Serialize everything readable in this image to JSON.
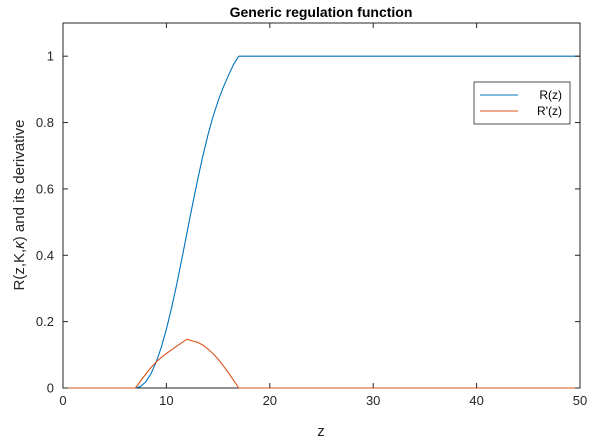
{
  "chart_data": {
    "type": "line",
    "title": "Generic regulation function",
    "xlabel": "z",
    "ylabel": "R(z,K,κ) and its derivative",
    "xlim": [
      0,
      50
    ],
    "ylim": [
      0,
      1.1
    ],
    "xticks": [
      0,
      10,
      20,
      30,
      40,
      50
    ],
    "xtick_labels": [
      "0",
      "10",
      "20",
      "30",
      "40",
      "50"
    ],
    "yticks": [
      0,
      0.2,
      0.4,
      0.6,
      0.8,
      1
    ],
    "ytick_labels": [
      "0",
      "0.2",
      "0.4",
      "0.6",
      "0.8",
      "1"
    ],
    "grid": false,
    "legend_position": "top-right",
    "series": [
      {
        "name": "R(z)",
        "color": "#0072BD",
        "x": [
          0,
          7,
          7.5,
          8,
          8.5,
          9,
          9.5,
          10,
          10.5,
          11,
          11.5,
          12,
          12.5,
          13,
          13.5,
          14,
          14.5,
          15,
          15.5,
          16,
          16.5,
          17,
          20,
          30,
          40,
          50
        ],
        "y": [
          0,
          0,
          0.0044,
          0.0184,
          0.0425,
          0.0771,
          0.1221,
          0.1772,
          0.2413,
          0.3128,
          0.3897,
          0.4695,
          0.5485,
          0.6246,
          0.6958,
          0.7604,
          0.8171,
          0.8652,
          0.9061,
          0.942,
          0.9755,
          1.0,
          1.0,
          1.0,
          1.0,
          1.0
        ]
      },
      {
        "name": "R'(z)",
        "color": "#D95319",
        "x": [
          0,
          7,
          7.5,
          8,
          8.5,
          9,
          9.5,
          10,
          10.5,
          11,
          11.5,
          12,
          12.5,
          13,
          13.5,
          14,
          14.5,
          15,
          15.5,
          16,
          16.5,
          17,
          20,
          30,
          40,
          50
        ],
        "y": [
          0,
          0,
          0.0211,
          0.0418,
          0.0611,
          0.0781,
          0.0921,
          0.104,
          0.115,
          0.126,
          0.137,
          0.147,
          0.142,
          0.138,
          0.13,
          0.118,
          0.104,
          0.087,
          0.067,
          0.046,
          0.023,
          0,
          0,
          0,
          0,
          0
        ]
      }
    ]
  }
}
